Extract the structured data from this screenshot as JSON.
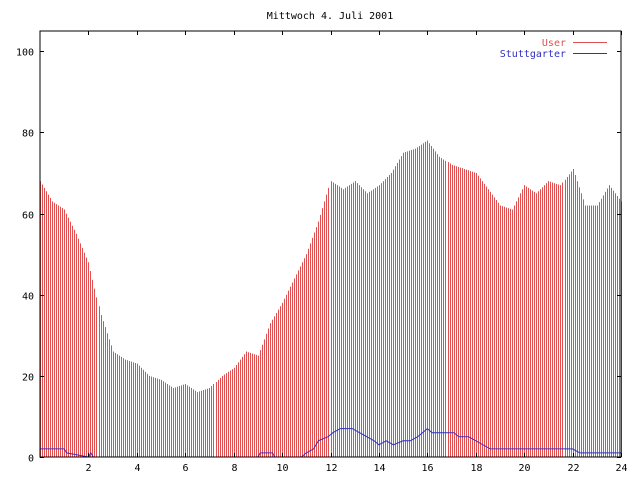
{
  "chart_data": {
    "type": "bar",
    "title": "Mittwoch 4. Juli 2001",
    "xlabel": "",
    "ylabel": "",
    "xlim": [
      0,
      24
    ],
    "ylim": [
      0,
      105
    ],
    "x_ticks": [
      2,
      4,
      6,
      8,
      10,
      12,
      14,
      16,
      18,
      20,
      22,
      24
    ],
    "y_ticks": [
      0,
      20,
      40,
      60,
      80,
      100
    ],
    "legend_position": "top-right",
    "grid": false,
    "series": [
      {
        "name": "User",
        "style": "impulses",
        "color": "#e05050",
        "points": [
          [
            0.0,
            68
          ],
          [
            0.5,
            63
          ],
          [
            1.0,
            61
          ],
          [
            1.5,
            55
          ],
          [
            2.0,
            48
          ],
          [
            2.5,
            35
          ],
          [
            3.0,
            26
          ],
          [
            3.5,
            24
          ],
          [
            4.0,
            23
          ],
          [
            4.5,
            20
          ],
          [
            5.0,
            19
          ],
          [
            5.5,
            17
          ],
          [
            6.0,
            18
          ],
          [
            6.5,
            16
          ],
          [
            7.0,
            17
          ],
          [
            7.5,
            20
          ],
          [
            8.0,
            22
          ],
          [
            8.5,
            26
          ],
          [
            9.0,
            25
          ],
          [
            9.5,
            33
          ],
          [
            10.0,
            38
          ],
          [
            10.5,
            44
          ],
          [
            11.0,
            50
          ],
          [
            11.5,
            58
          ],
          [
            12.0,
            68
          ],
          [
            12.5,
            66
          ],
          [
            13.0,
            68
          ],
          [
            13.5,
            65
          ],
          [
            14.0,
            67
          ],
          [
            14.5,
            70
          ],
          [
            15.0,
            75
          ],
          [
            15.5,
            76
          ],
          [
            16.0,
            78
          ],
          [
            16.5,
            74
          ],
          [
            17.0,
            72
          ],
          [
            17.5,
            71
          ],
          [
            18.0,
            70
          ],
          [
            18.5,
            66
          ],
          [
            19.0,
            62
          ],
          [
            19.5,
            61
          ],
          [
            20.0,
            67
          ],
          [
            20.5,
            65
          ],
          [
            21.0,
            68
          ],
          [
            21.5,
            67
          ],
          [
            22.0,
            71
          ],
          [
            22.5,
            62
          ],
          [
            23.0,
            62
          ],
          [
            23.5,
            67
          ],
          [
            24.0,
            63
          ]
        ]
      },
      {
        "name": "Stuttgarter",
        "style": "lines",
        "color": "#3030c0",
        "points": [
          [
            0.0,
            2
          ],
          [
            1.0,
            2
          ],
          [
            1.1,
            1
          ],
          [
            2.0,
            0
          ],
          [
            2.1,
            1
          ],
          [
            2.2,
            0
          ],
          [
            9.0,
            0
          ],
          [
            9.1,
            1
          ],
          [
            9.6,
            1
          ],
          [
            9.7,
            0
          ],
          [
            10.8,
            0
          ],
          [
            11.0,
            1
          ],
          [
            11.3,
            2
          ],
          [
            11.5,
            4
          ],
          [
            11.9,
            5
          ],
          [
            12.1,
            6
          ],
          [
            12.4,
            7
          ],
          [
            12.9,
            7
          ],
          [
            13.2,
            6
          ],
          [
            13.5,
            5
          ],
          [
            13.8,
            4
          ],
          [
            14.0,
            3
          ],
          [
            14.3,
            4
          ],
          [
            14.6,
            3
          ],
          [
            15.0,
            4
          ],
          [
            15.3,
            4
          ],
          [
            15.6,
            5
          ],
          [
            15.8,
            6
          ],
          [
            16.0,
            7
          ],
          [
            16.2,
            6
          ],
          [
            16.7,
            6
          ],
          [
            17.1,
            6
          ],
          [
            17.3,
            5
          ],
          [
            17.7,
            5
          ],
          [
            18.0,
            4
          ],
          [
            18.6,
            2
          ],
          [
            20.0,
            2
          ],
          [
            21.0,
            2
          ],
          [
            22.0,
            2
          ],
          [
            22.3,
            1
          ],
          [
            24.0,
            1
          ]
        ]
      }
    ]
  }
}
